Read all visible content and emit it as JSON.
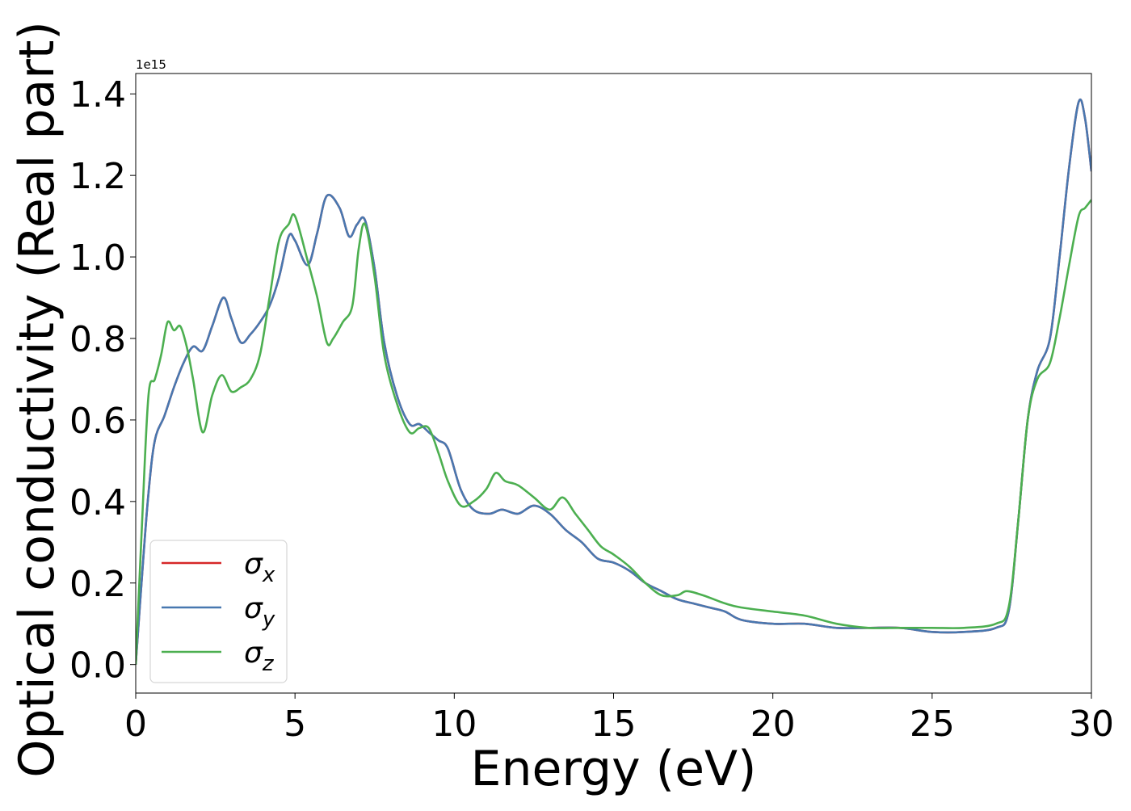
{
  "chart_data": {
    "type": "line",
    "xlabel": "Energy (eV)",
    "ylabel": "Optical conductivity (Real part)",
    "y_offset_text": "1e15",
    "xlim": [
      0,
      30
    ],
    "ylim": [
      -0.07,
      1.45
    ],
    "xticks": [
      0,
      5,
      10,
      15,
      20,
      25,
      30
    ],
    "xtick_labels": [
      "0",
      "5",
      "10",
      "15",
      "20",
      "25",
      "30"
    ],
    "yticks": [
      0.0,
      0.2,
      0.4,
      0.6,
      0.8,
      1.0,
      1.2,
      1.4
    ],
    "ytick_labels": [
      "0.0",
      "0.2",
      "0.4",
      "0.6",
      "0.8",
      "1.0",
      "1.2",
      "1.4"
    ],
    "grid": false,
    "legend_position": "lower-left",
    "series": [
      {
        "name": "σx",
        "symbol": "σ",
        "subscript": "x",
        "color": "#d62728",
        "x": [
          0,
          0.2,
          0.4,
          0.6,
          0.9,
          1.2,
          1.5,
          1.8,
          2.1,
          2.4,
          2.75,
          3.0,
          3.3,
          3.6,
          3.9,
          4.2,
          4.5,
          4.8,
          5.0,
          5.4,
          5.7,
          6.0,
          6.4,
          6.7,
          6.95,
          7.2,
          7.5,
          7.8,
          8.2,
          8.6,
          8.9,
          9.2,
          9.5,
          9.8,
          10.2,
          10.6,
          11.1,
          11.5,
          12.0,
          12.5,
          13.0,
          13.5,
          14.0,
          14.5,
          15.0,
          15.5,
          16.0,
          16.5,
          17.0,
          17.5,
          18.0,
          18.5,
          19.0,
          20.0,
          21.0,
          22.0,
          23.0,
          24.0,
          25.0,
          26.0,
          27.0,
          27.4,
          27.7,
          28.0,
          28.3,
          28.7,
          29.0,
          29.3,
          29.6,
          29.8,
          30.0
        ],
        "values": [
          0.0,
          0.22,
          0.42,
          0.55,
          0.61,
          0.68,
          0.74,
          0.78,
          0.77,
          0.83,
          0.9,
          0.85,
          0.79,
          0.81,
          0.84,
          0.88,
          0.95,
          1.05,
          1.04,
          0.98,
          1.06,
          1.15,
          1.12,
          1.05,
          1.08,
          1.09,
          0.97,
          0.79,
          0.66,
          0.59,
          0.59,
          0.57,
          0.55,
          0.53,
          0.43,
          0.38,
          0.37,
          0.38,
          0.37,
          0.39,
          0.37,
          0.33,
          0.3,
          0.26,
          0.25,
          0.23,
          0.2,
          0.18,
          0.16,
          0.15,
          0.14,
          0.13,
          0.11,
          0.1,
          0.1,
          0.09,
          0.09,
          0.09,
          0.08,
          0.08,
          0.09,
          0.13,
          0.35,
          0.6,
          0.72,
          0.8,
          1.0,
          1.22,
          1.38,
          1.34,
          1.21
        ]
      },
      {
        "name": "σy",
        "symbol": "σ",
        "subscript": "y",
        "color": "#4878b0",
        "x": [
          0,
          0.2,
          0.4,
          0.6,
          0.9,
          1.2,
          1.5,
          1.8,
          2.1,
          2.4,
          2.75,
          3.0,
          3.3,
          3.6,
          3.9,
          4.2,
          4.5,
          4.8,
          5.0,
          5.4,
          5.7,
          6.0,
          6.4,
          6.7,
          6.95,
          7.2,
          7.5,
          7.8,
          8.2,
          8.6,
          8.9,
          9.2,
          9.5,
          9.8,
          10.2,
          10.6,
          11.1,
          11.5,
          12.0,
          12.5,
          13.0,
          13.5,
          14.0,
          14.5,
          15.0,
          15.5,
          16.0,
          16.5,
          17.0,
          17.5,
          18.0,
          18.5,
          19.0,
          20.0,
          21.0,
          22.0,
          23.0,
          24.0,
          25.0,
          26.0,
          27.0,
          27.4,
          27.7,
          28.0,
          28.3,
          28.7,
          29.0,
          29.3,
          29.6,
          29.8,
          30.0
        ],
        "values": [
          0.0,
          0.22,
          0.42,
          0.55,
          0.61,
          0.68,
          0.74,
          0.78,
          0.77,
          0.83,
          0.9,
          0.85,
          0.79,
          0.81,
          0.84,
          0.88,
          0.95,
          1.05,
          1.04,
          0.98,
          1.06,
          1.15,
          1.12,
          1.05,
          1.08,
          1.09,
          0.97,
          0.79,
          0.66,
          0.59,
          0.59,
          0.57,
          0.55,
          0.53,
          0.43,
          0.38,
          0.37,
          0.38,
          0.37,
          0.39,
          0.37,
          0.33,
          0.3,
          0.26,
          0.25,
          0.23,
          0.2,
          0.18,
          0.16,
          0.15,
          0.14,
          0.13,
          0.11,
          0.1,
          0.1,
          0.09,
          0.09,
          0.09,
          0.08,
          0.08,
          0.09,
          0.13,
          0.35,
          0.6,
          0.72,
          0.8,
          1.0,
          1.22,
          1.38,
          1.34,
          1.21
        ]
      },
      {
        "name": "σz",
        "symbol": "σ",
        "subscript": "z",
        "color": "#4caf50",
        "x": [
          0,
          0.2,
          0.4,
          0.6,
          0.8,
          1.0,
          1.2,
          1.4,
          1.6,
          1.8,
          2.1,
          2.4,
          2.7,
          3.0,
          3.3,
          3.6,
          3.9,
          4.2,
          4.5,
          4.8,
          5.0,
          5.4,
          5.7,
          6.0,
          6.2,
          6.5,
          6.8,
          7.0,
          7.2,
          7.5,
          7.8,
          8.2,
          8.6,
          8.9,
          9.2,
          9.5,
          9.8,
          10.2,
          10.6,
          11.0,
          11.3,
          11.6,
          12.0,
          12.5,
          13.0,
          13.4,
          13.8,
          14.2,
          14.6,
          15.0,
          15.5,
          16.0,
          16.5,
          17.0,
          17.3,
          17.8,
          18.5,
          19.0,
          20.0,
          21.0,
          22.0,
          23.0,
          24.0,
          25.0,
          26.0,
          27.0,
          27.4,
          27.7,
          28.0,
          28.3,
          28.7,
          29.0,
          29.3,
          29.6,
          29.8,
          30.0
        ],
        "values": [
          0.0,
          0.35,
          0.66,
          0.7,
          0.76,
          0.84,
          0.82,
          0.83,
          0.78,
          0.7,
          0.57,
          0.66,
          0.71,
          0.67,
          0.68,
          0.7,
          0.76,
          0.9,
          1.04,
          1.08,
          1.1,
          0.99,
          0.9,
          0.79,
          0.8,
          0.84,
          0.88,
          1.02,
          1.08,
          0.95,
          0.76,
          0.64,
          0.57,
          0.58,
          0.58,
          0.52,
          0.45,
          0.39,
          0.4,
          0.43,
          0.47,
          0.45,
          0.44,
          0.41,
          0.38,
          0.41,
          0.37,
          0.33,
          0.29,
          0.27,
          0.24,
          0.2,
          0.17,
          0.17,
          0.18,
          0.17,
          0.15,
          0.14,
          0.13,
          0.12,
          0.1,
          0.09,
          0.09,
          0.09,
          0.09,
          0.1,
          0.14,
          0.35,
          0.6,
          0.7,
          0.74,
          0.85,
          0.98,
          1.1,
          1.12,
          1.14
        ]
      }
    ]
  }
}
